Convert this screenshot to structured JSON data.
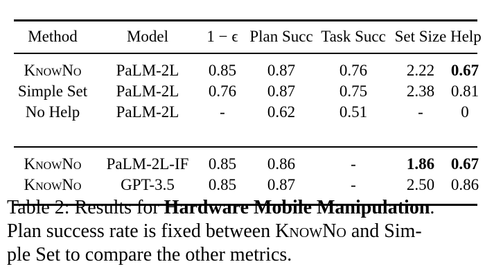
{
  "table": {
    "headers": {
      "method": "Method",
      "model": "Model",
      "eps": "1 − ϵ",
      "plan": "Plan Succ",
      "task": "Task Succ",
      "set": "Set Size",
      "help": "Help"
    },
    "rows": [
      {
        "method": "KnowNo",
        "model": "PaLM-2L",
        "eps": "0.85",
        "plan": "0.87",
        "task": "0.76",
        "set": "2.22",
        "help": "0.67"
      },
      {
        "method": "Simple Set",
        "model": "PaLM-2L",
        "eps": "0.76",
        "plan": "0.87",
        "task": "0.75",
        "set": "2.38",
        "help": "0.81"
      },
      {
        "method": "No Help",
        "model": "PaLM-2L",
        "eps": "-",
        "plan": "0.62",
        "task": "0.51",
        "set": "-",
        "help": "0"
      },
      {
        "method": "KnowNo",
        "model": "PaLM-2L-IF",
        "eps": "0.85",
        "plan": "0.86",
        "task": "-",
        "set": "1.86",
        "help": "0.67"
      },
      {
        "method": "KnowNo",
        "model": "GPT-3.5",
        "eps": "0.85",
        "plan": "0.87",
        "task": "-",
        "set": "2.50",
        "help": "0.86"
      }
    ]
  },
  "caption": {
    "prefix": "Table 2: Results for ",
    "bold": "Hardware Mobile Manipulation",
    "suffix": ".",
    "line2_a": "Plan success rate is fixed between ",
    "line2_sc": "KnowNo",
    "line2_b": " and Sim-",
    "line3": "ple Set to compare the other metrics."
  }
}
